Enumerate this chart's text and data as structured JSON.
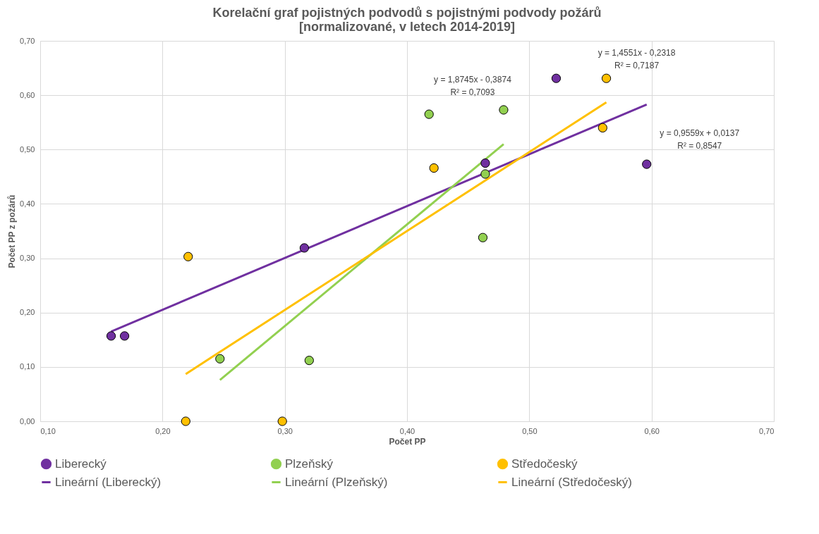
{
  "chart_data": {
    "type": "scatter",
    "title": [
      "Korelační graf pojistných podvodů s pojistnými podvody požárů",
      "[normalizované, v letech 2014-2019]"
    ],
    "xlabel": "Počet PP",
    "ylabel": "Počet PP z požárů",
    "series": [
      {
        "name": "Liberecký",
        "marker": "circle",
        "color": "#7030a0",
        "x": [
          0.158,
          0.169,
          0.316,
          0.464,
          0.522,
          0.596
        ],
        "values": [
          0.157,
          0.157,
          0.319,
          0.475,
          0.631,
          0.473
        ]
      },
      {
        "name": "Plzeňský",
        "marker": "circle",
        "color": "#92d050",
        "x": [
          0.247,
          0.32,
          0.418,
          0.479,
          0.464,
          0.462
        ],
        "values": [
          0.115,
          0.112,
          0.565,
          0.573,
          0.455,
          0.338
        ]
      },
      {
        "name": "Středočeský",
        "marker": "circle",
        "color": "#ffc000",
        "x": [
          0.221,
          0.219,
          0.298,
          0.422,
          0.563,
          0.56
        ],
        "values": [
          0.303,
          0.0,
          0.0,
          0.466,
          0.631,
          0.54
        ]
      },
      {
        "name": "Lineární (Liberecký)",
        "type": "line",
        "marker": "none",
        "line_style": "solid",
        "color": "#7030a0",
        "x": [
          0.158,
          0.596
        ],
        "values": [
          0.165,
          0.583
        ]
      },
      {
        "name": "Lineární (Plzeňský)",
        "type": "line",
        "marker": "none",
        "line_style": "solid",
        "color": "#92d050",
        "x": [
          0.247,
          0.479
        ],
        "values": [
          0.076,
          0.51
        ]
      },
      {
        "name": "Lineární (Středočeský)",
        "type": "line",
        "marker": "none",
        "line_style": "solid",
        "color": "#ffc000",
        "x": [
          0.219,
          0.563
        ],
        "values": [
          0.087,
          0.587
        ]
      }
    ],
    "annotations": [
      "y = 1,8745x - 0,3874",
      "R² = 0,7093",
      "y = 1,4551x - 0,2318",
      "R² = 0,7187",
      "y = 0,9559x + 0,0137",
      "R² = 0,8547"
    ],
    "xlim": [
      0.1,
      0.7
    ],
    "ylim": [
      0,
      0.7
    ],
    "xticks": [
      {
        "value": 0.1,
        "label": "0,10"
      },
      {
        "value": 0.2,
        "label": "0,20"
      },
      {
        "value": 0.3,
        "label": "0,30"
      },
      {
        "value": 0.4,
        "label": "0,40"
      },
      {
        "value": 0.5,
        "label": "0,50"
      },
      {
        "value": 0.6,
        "label": "0,60"
      },
      {
        "value": 0.7,
        "label": "0,70"
      }
    ],
    "yticks": [
      {
        "value": 0,
        "label": "0,00"
      },
      {
        "value": 0.1,
        "label": "0,10"
      },
      {
        "value": 0.2,
        "label": "0,20"
      },
      {
        "value": 0.3,
        "label": "0,30"
      },
      {
        "value": 0.4,
        "label": "0,40"
      },
      {
        "value": 0.5,
        "label": "0,50"
      },
      {
        "value": 0.6,
        "label": "0,60"
      },
      {
        "value": 0.7,
        "label": "0,70"
      }
    ],
    "grid": true,
    "legend": "bottom"
  }
}
